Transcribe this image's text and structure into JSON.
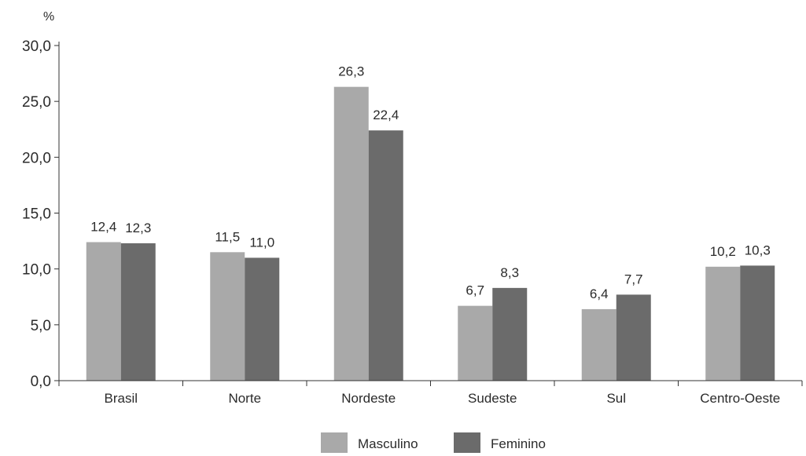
{
  "chart_data": {
    "type": "bar",
    "title": "",
    "xlabel": "",
    "ylabel": "%",
    "ylim": [
      0,
      30
    ],
    "yticks": [
      0,
      5,
      10,
      15,
      20,
      25,
      30
    ],
    "ytick_labels": [
      "0,0",
      "5,0",
      "10,0",
      "15,0",
      "20,0",
      "25,0",
      "30,0"
    ],
    "grid": false,
    "legend_position": "bottom-center",
    "categories": [
      "Brasil",
      "Norte",
      "Nordeste",
      "Sudeste",
      "Sul",
      "Centro-Oeste"
    ],
    "series": [
      {
        "name": "Masculino",
        "color": "#a9a9a9",
        "values": [
          12.4,
          11.5,
          26.3,
          6.7,
          6.4,
          10.2
        ],
        "labels": [
          "12,4",
          "11,5",
          "26,3",
          "6,7",
          "6,4",
          "10,2"
        ]
      },
      {
        "name": "Feminino",
        "color": "#6b6b6b",
        "values": [
          12.3,
          11.0,
          22.4,
          8.3,
          7.7,
          10.3
        ],
        "labels": [
          "12,3",
          "11,0",
          "22,4",
          "8,3",
          "7,7",
          "10,3"
        ]
      }
    ]
  }
}
